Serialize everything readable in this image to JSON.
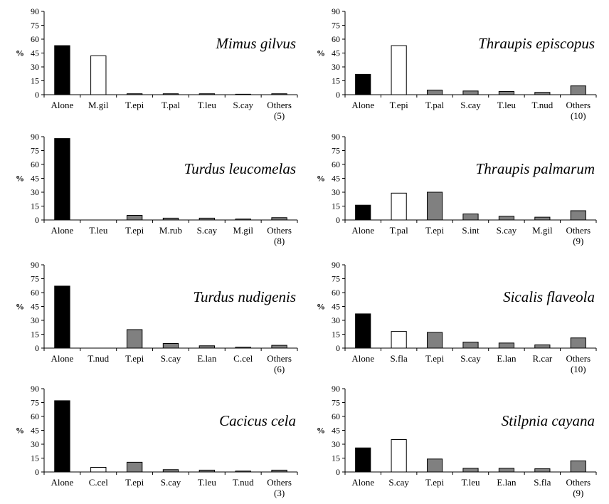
{
  "chart_data": [
    {
      "type": "bar",
      "title": "Mimus gilvus",
      "ylabel": "%",
      "ylim": [
        0,
        90
      ],
      "yticks": [
        "0",
        "15",
        "30",
        "45",
        "60",
        "75",
        "90"
      ],
      "categories": [
        "Alone",
        "M.gil",
        "T.epi",
        "T.pal",
        "T.leu",
        "S.cay",
        "Others"
      ],
      "others_note": "(5)",
      "values": [
        53,
        42,
        1,
        1,
        1,
        0.5,
        1
      ],
      "fills": [
        "black",
        "white",
        "gray",
        "gray",
        "gray",
        "gray",
        "gray"
      ]
    },
    {
      "type": "bar",
      "title": "Thraupis episcopus",
      "ylabel": "%",
      "ylim": [
        0,
        90
      ],
      "yticks": [
        "0",
        "15",
        "30",
        "45",
        "60",
        "75",
        "90"
      ],
      "categories": [
        "Alone",
        "T.epi",
        "T.pal",
        "S.cay",
        "T.leu",
        "T.nud",
        "Others"
      ],
      "others_note": "(10)",
      "values": [
        22,
        53,
        5,
        4,
        3.5,
        2.5,
        9.5
      ],
      "fills": [
        "black",
        "white",
        "gray",
        "gray",
        "gray",
        "gray",
        "gray"
      ]
    },
    {
      "type": "bar",
      "title": "Turdus leucomelas",
      "ylabel": "%",
      "ylim": [
        0,
        90
      ],
      "yticks": [
        "0",
        "15",
        "30",
        "45",
        "60",
        "75",
        "90"
      ],
      "categories": [
        "Alone",
        "T.leu",
        "T.epi",
        "M.rub",
        "S.cay",
        "M.gil",
        "Others"
      ],
      "others_note": "(8)",
      "values": [
        88,
        0,
        5,
        2,
        2,
        1,
        2.5
      ],
      "fills": [
        "black",
        "white",
        "gray",
        "gray",
        "gray",
        "gray",
        "gray"
      ]
    },
    {
      "type": "bar",
      "title": "Thraupis palmarum",
      "ylabel": "%",
      "ylim": [
        0,
        90
      ],
      "yticks": [
        "0",
        "15",
        "30",
        "45",
        "60",
        "75",
        "90"
      ],
      "categories": [
        "Alone",
        "T.pal",
        "T.epi",
        "S.int",
        "S.cay",
        "M.gil",
        "Others"
      ],
      "others_note": "(9)",
      "values": [
        16,
        29,
        30,
        6.5,
        4,
        3,
        10
      ],
      "fills": [
        "black",
        "white",
        "gray",
        "gray",
        "gray",
        "gray",
        "gray"
      ]
    },
    {
      "type": "bar",
      "title": "Turdus nudigenis",
      "ylabel": "%",
      "ylim": [
        0,
        90
      ],
      "yticks": [
        "0",
        "15",
        "30",
        "45",
        "60",
        "75",
        "90"
      ],
      "categories": [
        "Alone",
        "T.nud",
        "T.epi",
        "S.cay",
        "E.lan",
        "C.cel",
        "Others"
      ],
      "others_note": "(6)",
      "values": [
        67,
        0,
        20,
        5,
        2.5,
        1,
        3
      ],
      "fills": [
        "black",
        "white",
        "gray",
        "gray",
        "gray",
        "gray",
        "gray"
      ]
    },
    {
      "type": "bar",
      "title": "Sicalis flaveola",
      "ylabel": "%",
      "ylim": [
        0,
        90
      ],
      "yticks": [
        "0",
        "15",
        "30",
        "45",
        "60",
        "75",
        "90"
      ],
      "categories": [
        "Alone",
        "S.fla",
        "T.epi",
        "S.cay",
        "E.lan",
        "R.car",
        "Others"
      ],
      "others_note": "(10)",
      "values": [
        37,
        18,
        17,
        6.5,
        5.5,
        3.5,
        11
      ],
      "fills": [
        "black",
        "white",
        "gray",
        "gray",
        "gray",
        "gray",
        "gray"
      ]
    },
    {
      "type": "bar",
      "title": "Cacicus cela",
      "ylabel": "%",
      "ylim": [
        0,
        90
      ],
      "yticks": [
        "0",
        "15",
        "30",
        "45",
        "60",
        "75",
        "90"
      ],
      "categories": [
        "Alone",
        "C.cel",
        "T.epi",
        "S.cay",
        "T.leu",
        "T.nud",
        "Others"
      ],
      "others_note": "(3)",
      "values": [
        77,
        5,
        10.5,
        2.5,
        2,
        1,
        2
      ],
      "fills": [
        "black",
        "white",
        "gray",
        "gray",
        "gray",
        "gray",
        "gray"
      ]
    },
    {
      "type": "bar",
      "title": "Stilpnia cayana",
      "ylabel": "%",
      "ylim": [
        0,
        90
      ],
      "yticks": [
        "0",
        "15",
        "30",
        "45",
        "60",
        "75",
        "90"
      ],
      "categories": [
        "Alone",
        "S.cay",
        "T.epi",
        "T.leu",
        "E.lan",
        "S.fla",
        "Others"
      ],
      "others_note": "(9)",
      "values": [
        26,
        35,
        14,
        4,
        4,
        3.5,
        12
      ],
      "fills": [
        "black",
        "white",
        "gray",
        "gray",
        "gray",
        "gray",
        "gray"
      ]
    }
  ],
  "colors": {
    "black": "#000000",
    "white": "#ffffff",
    "gray": "#808080",
    "axis": "#000000"
  }
}
